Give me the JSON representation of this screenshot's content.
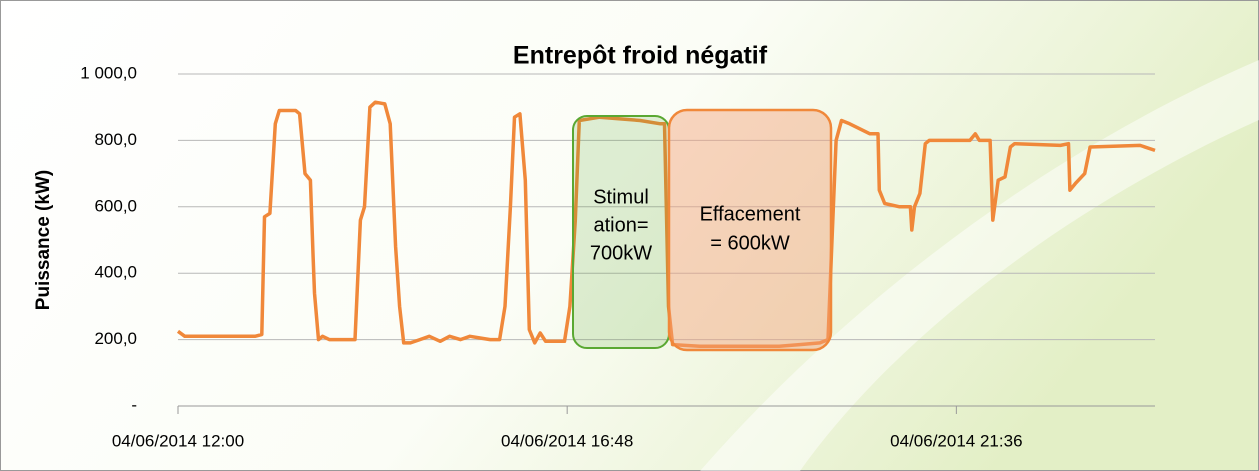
{
  "chart_data": {
    "type": "line",
    "title": "Entrepôt froid négatif",
    "ylabel": "Puissance (kW)",
    "x": [
      "2014-06-04T12:00",
      "2014-06-04T12:05",
      "2014-06-04T12:16",
      "2014-06-04T12:57",
      "2014-06-04T13:02",
      "2014-06-04T13:04",
      "2014-06-04T13:08",
      "2014-06-04T13:12",
      "2014-06-04T13:15",
      "2014-06-04T13:27",
      "2014-06-04T13:30",
      "2014-06-04T13:34",
      "2014-06-04T13:38",
      "2014-06-04T13:40",
      "2014-06-04T13:41",
      "2014-06-04T13:44",
      "2014-06-04T13:47",
      "2014-06-04T13:52",
      "2014-06-04T14:11",
      "2014-06-04T14:15",
      "2014-06-04T14:18",
      "2014-06-04T14:22",
      "2014-06-04T14:26",
      "2014-06-04T14:33",
      "2014-06-04T14:37",
      "2014-06-04T14:41",
      "2014-06-04T14:44",
      "2014-06-04T14:47",
      "2014-06-04T14:52",
      "2014-06-04T14:59",
      "2014-06-04T15:06",
      "2014-06-04T15:14",
      "2014-06-04T15:21",
      "2014-06-04T15:29",
      "2014-06-04T15:36",
      "2014-06-04T15:43",
      "2014-06-04T15:51",
      "2014-06-04T15:58",
      "2014-06-04T16:02",
      "2014-06-04T16:06",
      "2014-06-04T16:09",
      "2014-06-04T16:13",
      "2014-06-04T16:17",
      "2014-06-04T16:20",
      "2014-06-04T16:24",
      "2014-06-04T16:28",
      "2014-06-04T16:32",
      "2014-06-04T16:39",
      "2014-06-04T16:46",
      "2014-06-04T16:50",
      "2014-06-04T16:54",
      "2014-06-04T16:57",
      "2014-06-04T17:12",
      "2014-06-04T17:42",
      "2014-06-04T17:57",
      "2014-06-04T18:00",
      "2014-06-04T18:03",
      "2014-06-04T18:06",
      "2014-06-04T18:26",
      "2014-06-04T19:25",
      "2014-06-04T19:40",
      "2014-06-04T19:55",
      "2014-06-04T20:01",
      "2014-06-04T20:04",
      "2014-06-04T20:07",
      "2014-06-04T20:11",
      "2014-06-04T20:17",
      "2014-06-04T20:32",
      "2014-06-04T20:38",
      "2014-06-04T20:39",
      "2014-06-04T20:43",
      "2014-06-04T20:54",
      "2014-06-04T21:02",
      "2014-06-04T21:03",
      "2014-06-04T21:05",
      "2014-06-04T21:09",
      "2014-06-04T21:13",
      "2014-06-04T21:16",
      "2014-06-04T21:46",
      "2014-06-04T21:50",
      "2014-06-04T21:53",
      "2014-06-04T22:01",
      "2014-06-04T22:03",
      "2014-06-04T22:07",
      "2014-06-04T22:12",
      "2014-06-04T22:16",
      "2014-06-04T22:19",
      "2014-06-04T22:53",
      "2014-06-04T22:59",
      "2014-06-04T23:00",
      "2014-06-04T23:04",
      "2014-06-04T23:11",
      "2014-06-04T23:15",
      "2014-06-04T23:52",
      "2014-06-05T00:03"
    ],
    "series": [
      {
        "color": "#f0883a",
        "values": [
          225,
          210,
          210,
          210,
          215,
          570,
          580,
          850,
          890,
          890,
          880,
          700,
          680,
          450,
          340,
          200,
          210,
          200,
          200,
          560,
          600,
          900,
          915,
          910,
          850,
          480,
          300,
          190,
          190,
          200,
          210,
          195,
          210,
          200,
          210,
          205,
          200,
          200,
          300,
          600,
          870,
          880,
          680,
          230,
          190,
          220,
          195,
          195,
          195,
          300,
          560,
          860,
          870,
          860,
          850,
          850,
          300,
          185,
          180,
          180,
          185,
          190,
          200,
          500,
          800,
          860,
          850,
          820,
          820,
          650,
          610,
          600,
          600,
          530,
          600,
          640,
          790,
          800,
          800,
          820,
          800,
          800,
          560,
          680,
          690,
          780,
          790,
          785,
          790,
          650,
          670,
          700,
          780,
          785,
          770
        ]
      }
    ],
    "xlim": [
      "2014-06-04T12:00",
      "2014-06-05T00:03"
    ],
    "xticks": [
      {
        "value": "2014-06-04T12:00",
        "label": "04/06/2014 12:00"
      },
      {
        "value": "2014-06-04T16:48",
        "label": "04/06/2014 16:48"
      },
      {
        "value": "2014-06-04T21:36",
        "label": "04/06/2014 21:36"
      }
    ],
    "ylim": [
      0,
      1000
    ],
    "yticks": [
      {
        "value": 0,
        "label": "-"
      },
      {
        "value": 200,
        "label": "200,0"
      },
      {
        "value": 400,
        "label": "400,0"
      },
      {
        "value": 600,
        "label": "600,0"
      },
      {
        "value": 800,
        "label": "800,0"
      },
      {
        "value": 1000,
        "label": "1 000,0"
      }
    ],
    "grid": true,
    "annotations": [
      {
        "lines": [
          "Stimul",
          "ation=",
          "700kW"
        ],
        "color": "#5aa832"
      },
      {
        "lines": [
          "Effacement",
          "= 600kW"
        ],
        "color": "#c00000"
      }
    ]
  }
}
